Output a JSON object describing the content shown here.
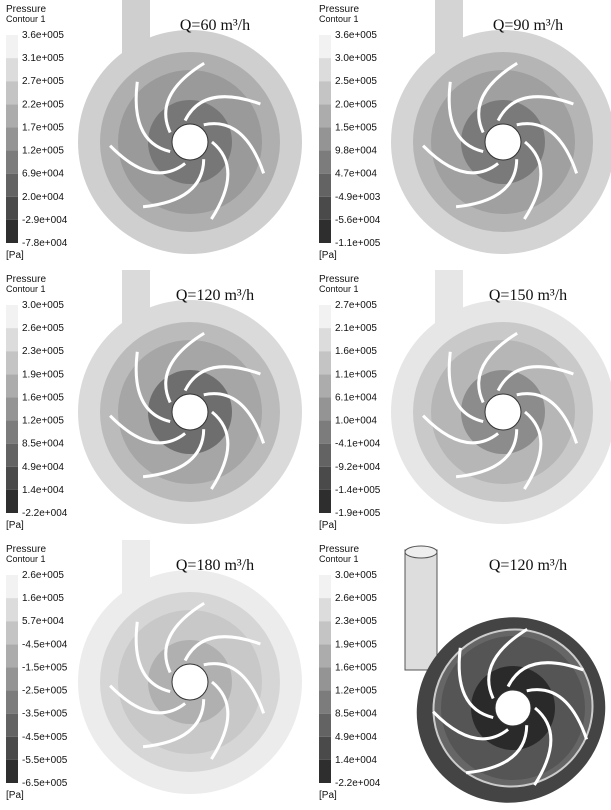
{
  "panels": [
    {
      "legend_title": "Pressure",
      "legend_subtitle": "Contour 1",
      "levels": [
        "3.6e+005",
        "3.1e+005",
        "2.7e+005",
        "2.2e+005",
        "1.7e+005",
        "1.2e+005",
        "6.9e+004",
        "2.0e+004",
        "-2.9e+004",
        "-7.8e+004"
      ],
      "unit": "[Pa]",
      "flow": "Q=60 m³/h"
    },
    {
      "legend_title": "Pressure",
      "legend_subtitle": "Contour 1",
      "levels": [
        "3.6e+005",
        "3.0e+005",
        "2.5e+005",
        "2.0e+005",
        "1.5e+005",
        "9.8e+004",
        "4.7e+004",
        "-4.9e+003",
        "-5.6e+004",
        "-1.1e+005"
      ],
      "unit": "[Pa]",
      "flow": "Q=90 m³/h"
    },
    {
      "legend_title": "Pressure",
      "legend_subtitle": "Contour 1",
      "levels": [
        "3.0e+005",
        "2.6e+005",
        "2.3e+005",
        "1.9e+005",
        "1.6e+005",
        "1.2e+005",
        "8.5e+004",
        "4.9e+004",
        "1.4e+004",
        "-2.2e+004"
      ],
      "unit": "[Pa]",
      "flow": "Q=120 m³/h"
    },
    {
      "legend_title": "Pressure",
      "legend_subtitle": "Contour 1",
      "levels": [
        "2.7e+005",
        "2.1e+005",
        "1.6e+005",
        "1.1e+005",
        "6.1e+004",
        "1.0e+004",
        "-4.1e+004",
        "-9.2e+004",
        "-1.4e+005",
        "-1.9e+005"
      ],
      "unit": "[Pa]",
      "flow": "Q=150 m³/h"
    },
    {
      "legend_title": "Pressure",
      "legend_subtitle": "Contour 1",
      "levels": [
        "2.6e+005",
        "1.6e+005",
        "5.7e+004",
        "-4.5e+004",
        "-1.5e+005",
        "-2.5e+005",
        "-3.5e+005",
        "-4.5e+005",
        "-5.5e+005",
        "-6.5e+005"
      ],
      "unit": "[Pa]",
      "flow": "Q=180 m³/h"
    },
    {
      "legend_title": "Pressure",
      "legend_subtitle": "Contour 1",
      "levels": [
        "3.0e+005",
        "2.6e+005",
        "2.3e+005",
        "1.9e+005",
        "1.6e+005",
        "1.2e+005",
        "8.5e+004",
        "4.9e+004",
        "1.4e+004",
        "-2.2e+004"
      ],
      "unit": "[Pa]",
      "flow": "Q=120 m³/h"
    }
  ]
}
